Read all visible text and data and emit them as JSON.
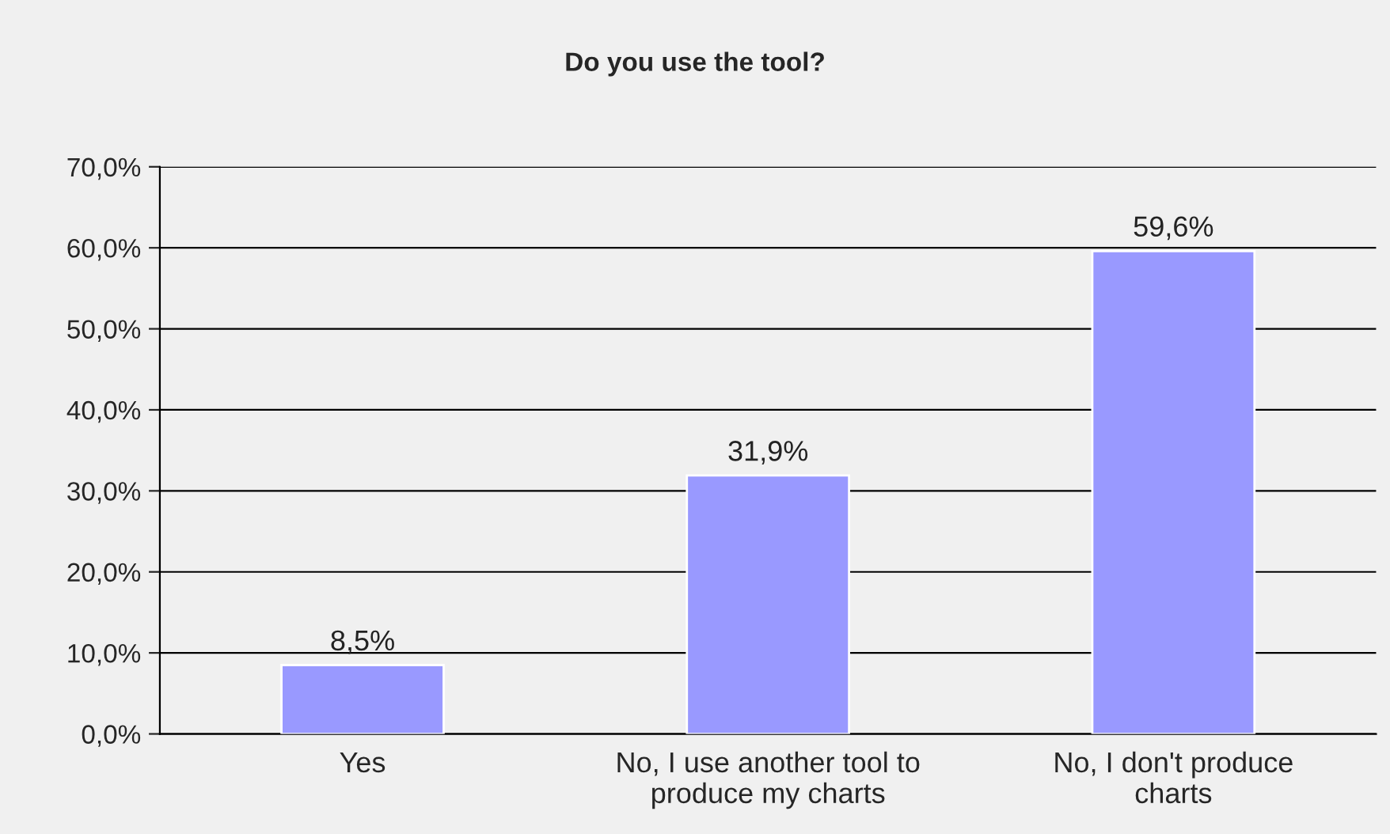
{
  "chart_data": {
    "type": "bar",
    "title": "Do you use the tool?",
    "categories": [
      "Yes",
      "No, I use another tool to\nproduce my charts",
      "No, I don't produce\ncharts"
    ],
    "values": [
      8.5,
      31.9,
      59.6
    ],
    "color": "#9999ff",
    "value_labels": [
      "8,5%",
      "31,9%",
      "59,6%"
    ],
    "ylim": [
      0,
      70
    ],
    "yticks": [
      {
        "value": 0,
        "label": "0,0%"
      },
      {
        "value": 10,
        "label": "10,0%"
      },
      {
        "value": 20,
        "label": "20,0%"
      },
      {
        "value": 30,
        "label": "30,0%"
      },
      {
        "value": 40,
        "label": "40,0%"
      },
      {
        "value": 50,
        "label": "50,0%"
      },
      {
        "value": 60,
        "label": "60,0%"
      },
      {
        "value": 70,
        "label": "70,0%"
      }
    ],
    "grid": "y",
    "legend": false
  }
}
